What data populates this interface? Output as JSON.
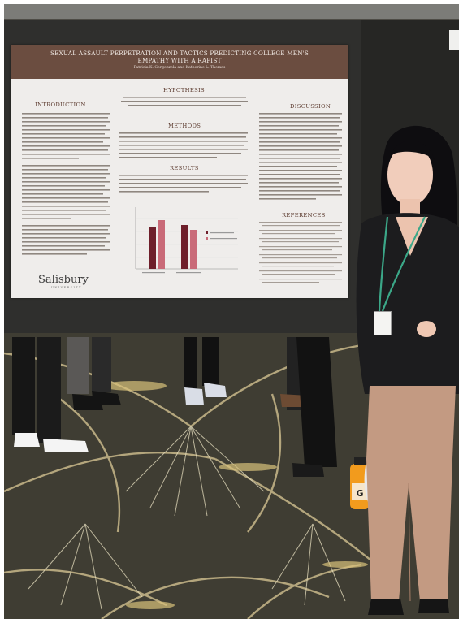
{
  "poster": {
    "title": "SEXUAL ASSAULT PERPETRATION AND TACTICS PREDICTING COLLEGE MEN'S EMPATHY WITH A RAPIST",
    "authors": "Patricia K. Gorgonzola and Katherine L. Thomas",
    "sections": {
      "introduction": "INTRODUCTION",
      "hypothesis": "HYPOTHESIS",
      "methods": "METHODS",
      "results": "RESULTS",
      "discussion": "DISCUSSION",
      "references": "REFERENCES"
    },
    "logo": "Salisbury",
    "logo_sub": "UNIVERSITY"
  },
  "bottle": {
    "label": "G"
  },
  "colors": {
    "poster_header": "#6b4d40",
    "bar_dark": "#6e1f2b",
    "bar_light": "#c96a78",
    "carpet": "#3f3d33",
    "blazer": "#1c1c1e",
    "trousers": "#c39a82"
  }
}
